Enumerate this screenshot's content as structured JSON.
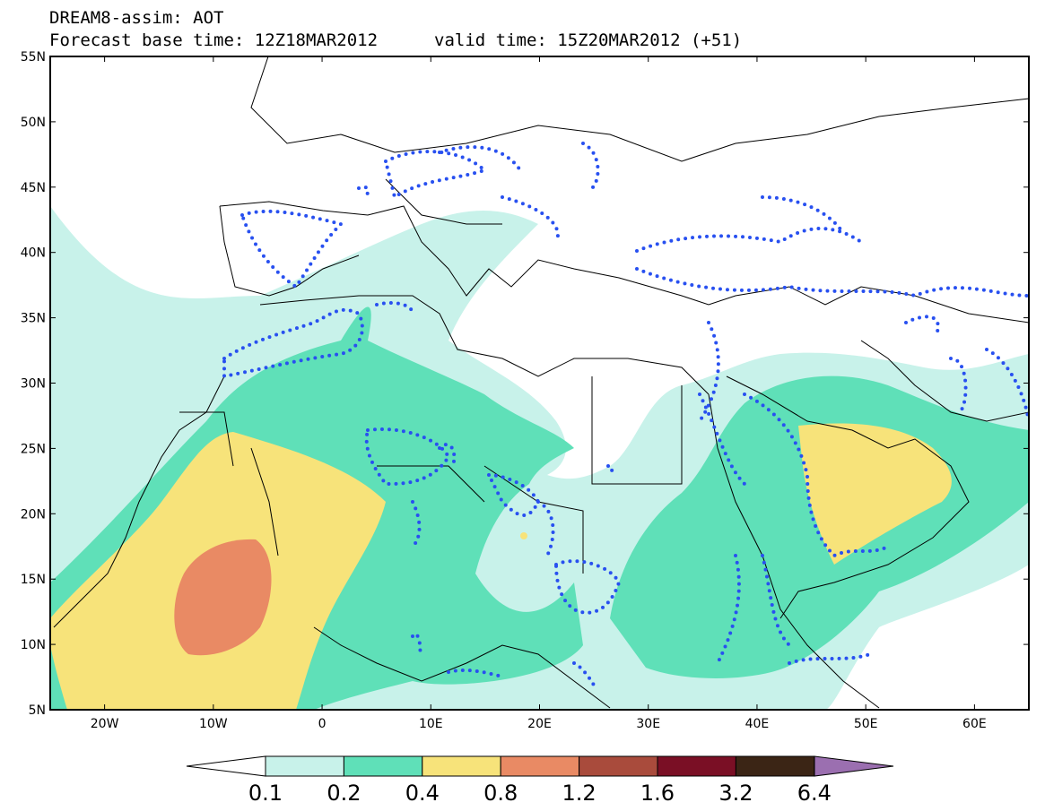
{
  "header": {
    "line1": "DREAM8-assim: AOT",
    "line2": "Forecast base time: 12Z18MAR2012",
    "valid": "valid time: 15Z20MAR2012 (+51)"
  },
  "map": {
    "lon_range": [
      -25,
      65
    ],
    "lat_range": [
      5,
      55
    ],
    "lat_ticks": [
      "55N",
      "50N",
      "45N",
      "40N",
      "35N",
      "30N",
      "25N",
      "20N",
      "15N",
      "10N",
      "5N"
    ],
    "lon_ticks": [
      "20W",
      "10W",
      "0",
      "10E",
      "20E",
      "30E",
      "40E",
      "50E",
      "60E"
    ]
  },
  "colorbar": {
    "labels": [
      "0.1",
      "0.2",
      "0.4",
      "0.8",
      "1.2",
      "1.6",
      "3.2",
      "6.4"
    ],
    "colors": {
      "under": "#ffffff",
      "c1": "#c8f2ea",
      "c2": "#5fe0b8",
      "c3": "#f7e37a",
      "c4": "#e98a64",
      "c5": "#a94b3c",
      "c6": "#7a0f25",
      "c7": "#3b2515",
      "over": "#9b6fb0"
    }
  },
  "overlay": {
    "dotted_color": "#2850f0"
  }
}
